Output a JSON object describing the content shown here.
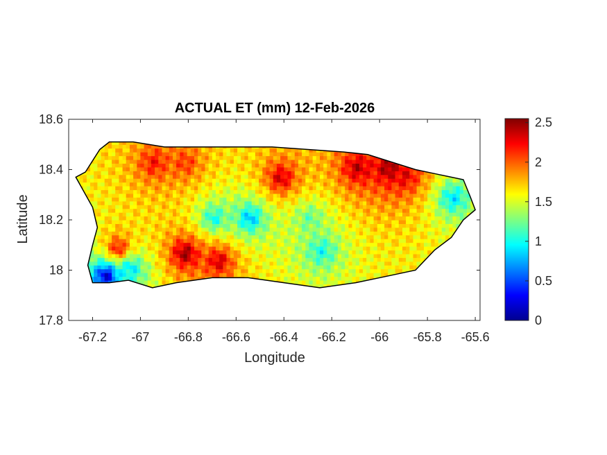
{
  "chart_data": {
    "type": "heatmap",
    "title": "ACTUAL ET (mm) 12-Feb-2026",
    "xlabel": "Longitude",
    "ylabel": "Latitude",
    "xlim": [
      -67.3,
      -65.58
    ],
    "ylim": [
      17.8,
      18.6
    ],
    "xticks": [
      -67.2,
      -67,
      -66.8,
      -66.6,
      -66.4,
      -66.2,
      -66,
      -65.8,
      -65.6
    ],
    "xtick_labels": [
      "-67.2",
      "-67",
      "-66.8",
      "-66.6",
      "-66.4",
      "-66.2",
      "-66",
      "-65.8",
      "-65.6"
    ],
    "yticks": [
      17.8,
      18,
      18.2,
      18.4,
      18.6
    ],
    "ytick_labels": [
      "17.8",
      "18",
      "18.2",
      "18.4",
      "18.6"
    ],
    "colorbar": {
      "range": [
        0,
        2.55
      ],
      "ticks": [
        0,
        0.5,
        1,
        1.5,
        2,
        2.5
      ],
      "tick_labels": [
        "0",
        "0.5",
        "1",
        "1.5",
        "2",
        "2.5"
      ],
      "colormap": "jet"
    },
    "grid": false,
    "region_outline": [
      [
        -67.27,
        18.37
      ],
      [
        -67.23,
        18.39
      ],
      [
        -67.17,
        18.48
      ],
      [
        -67.13,
        18.51
      ],
      [
        -67.03,
        18.51
      ],
      [
        -66.9,
        18.49
      ],
      [
        -66.75,
        18.49
      ],
      [
        -66.6,
        18.49
      ],
      [
        -66.45,
        18.49
      ],
      [
        -66.3,
        18.48
      ],
      [
        -66.15,
        18.47
      ],
      [
        -66.05,
        18.46
      ],
      [
        -65.95,
        18.43
      ],
      [
        -65.85,
        18.4
      ],
      [
        -65.75,
        18.38
      ],
      [
        -65.65,
        18.36
      ],
      [
        -65.62,
        18.29
      ],
      [
        -65.6,
        18.24
      ],
      [
        -65.65,
        18.2
      ],
      [
        -65.7,
        18.13
      ],
      [
        -65.77,
        18.08
      ],
      [
        -65.85,
        18.0
      ],
      [
        -65.95,
        17.98
      ],
      [
        -66.1,
        17.95
      ],
      [
        -66.25,
        17.93
      ],
      [
        -66.4,
        17.95
      ],
      [
        -66.55,
        17.97
      ],
      [
        -66.7,
        17.97
      ],
      [
        -66.85,
        17.95
      ],
      [
        -66.95,
        17.93
      ],
      [
        -67.05,
        17.96
      ],
      [
        -67.13,
        17.95
      ],
      [
        -67.2,
        17.95
      ],
      [
        -67.22,
        18.02
      ],
      [
        -67.2,
        18.1
      ],
      [
        -67.18,
        18.17
      ],
      [
        -67.2,
        18.25
      ],
      [
        -67.27,
        18.37
      ]
    ],
    "value_hotspots": [
      {
        "lon": -66.95,
        "lat": 18.42,
        "value": 2.2
      },
      {
        "lon": -66.82,
        "lat": 18.42,
        "value": 2.1
      },
      {
        "lon": -66.42,
        "lat": 18.36,
        "value": 2.35
      },
      {
        "lon": -66.1,
        "lat": 18.4,
        "value": 2.4
      },
      {
        "lon": -65.97,
        "lat": 18.4,
        "value": 2.5
      },
      {
        "lon": -65.9,
        "lat": 18.37,
        "value": 2.3
      },
      {
        "lon": -66.82,
        "lat": 18.06,
        "value": 2.5
      },
      {
        "lon": -66.68,
        "lat": 18.03,
        "value": 2.35
      },
      {
        "lon": -67.1,
        "lat": 18.08,
        "value": 2.2
      },
      {
        "lon": -66.55,
        "lat": 18.2,
        "value": 0.8
      },
      {
        "lon": -66.7,
        "lat": 18.2,
        "value": 1.0
      },
      {
        "lon": -66.25,
        "lat": 18.07,
        "value": 1.0
      },
      {
        "lon": -67.15,
        "lat": 17.97,
        "value": 0.2
      },
      {
        "lon": -67.05,
        "lat": 18.0,
        "value": 0.9
      },
      {
        "lon": -66.3,
        "lat": 18.2,
        "value": 1.2
      },
      {
        "lon": -65.7,
        "lat": 18.28,
        "value": 0.9
      }
    ],
    "background_value": 1.6
  }
}
